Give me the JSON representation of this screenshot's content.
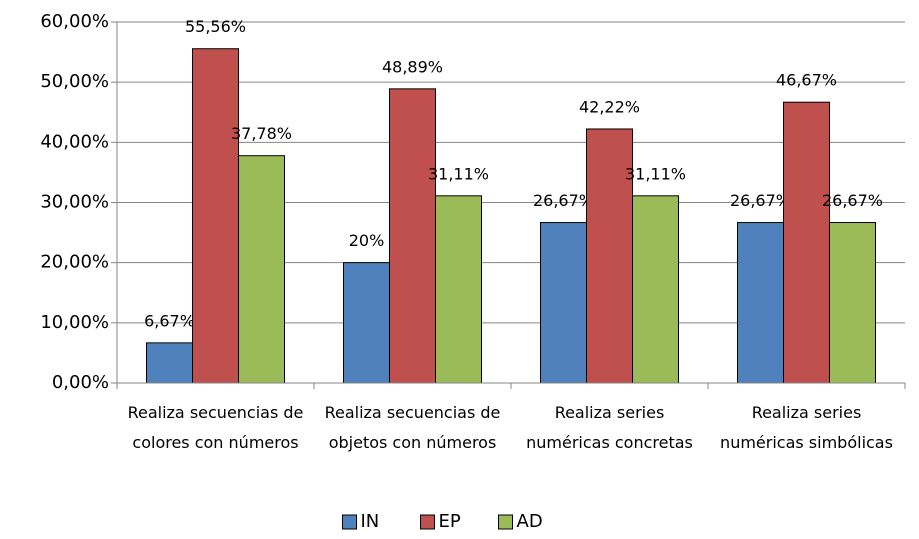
{
  "chart_data": {
    "type": "bar",
    "categories": [
      "Realiza secuencias de colores con números",
      "Realiza secuencias de objetos con números",
      "Realiza series numéricas concretas",
      "Realiza series numéricas simbólicas"
    ],
    "series": [
      {
        "name": "IN",
        "color": "#4f81bd",
        "values": [
          6.67,
          20,
          26.67,
          26.67
        ],
        "value_labels": [
          "6,67%",
          "20%",
          "26,67%",
          "26,67%"
        ]
      },
      {
        "name": "EP",
        "color": "#c0504d",
        "values": [
          55.56,
          48.89,
          42.22,
          46.67
        ],
        "value_labels": [
          "55,56%",
          "48,89%",
          "42,22%",
          "46,67%"
        ]
      },
      {
        "name": "AD",
        "color": "#9bbb59",
        "values": [
          37.78,
          31.11,
          31.11,
          26.67
        ],
        "value_labels": [
          "37,78%",
          "31,11%",
          "31,11%",
          "26,67%"
        ]
      }
    ],
    "ylim": [
      0,
      60
    ],
    "yticks": [
      {
        "value": 0,
        "label": "0,00%"
      },
      {
        "value": 10,
        "label": "10,00%"
      },
      {
        "value": 20,
        "label": "20,00%"
      },
      {
        "value": 30,
        "label": "30,00%"
      },
      {
        "value": 40,
        "label": "40,00%"
      },
      {
        "value": 50,
        "label": "50,00%"
      },
      {
        "value": 60,
        "label": "60,00%"
      }
    ],
    "grid": true,
    "legend": "bottom"
  }
}
